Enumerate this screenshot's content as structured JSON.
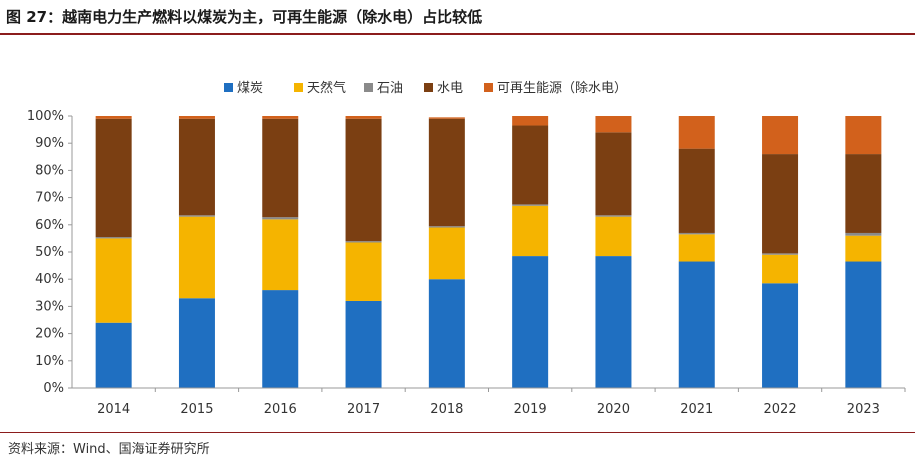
{
  "header": {
    "title": "图 27：越南电力生产燃料以煤炭为主，可再生能源（除水电）占比较低"
  },
  "footer": {
    "source": "资料来源：Wind、国海证券研究所"
  },
  "chart_data": {
    "type": "bar",
    "stacked": true,
    "title": "",
    "xlabel": "",
    "ylabel": "",
    "ylim": [
      0,
      100
    ],
    "y_tick_format": "percent",
    "y_ticks": [
      "0%",
      "10%",
      "20%",
      "30%",
      "40%",
      "50%",
      "60%",
      "70%",
      "80%",
      "90%",
      "100%"
    ],
    "legend_position": "top-center",
    "categories": [
      "2014",
      "2015",
      "2016",
      "2017",
      "2018",
      "2019",
      "2020",
      "2021",
      "2022",
      "2023"
    ],
    "series": [
      {
        "name": "煤炭",
        "color": "#1f6fc1",
        "values": [
          24,
          33,
          36,
          32,
          40,
          48.5,
          48.5,
          46.5,
          38.5,
          46.5
        ]
      },
      {
        "name": "天然气",
        "color": "#f5b400",
        "values": [
          31,
          30,
          26,
          21.5,
          19,
          18.5,
          14.5,
          10,
          10.5,
          9.5
        ]
      },
      {
        "name": "石油",
        "color": "#8a8a8a",
        "values": [
          0.5,
          0.5,
          0.8,
          0.5,
          0.5,
          0.5,
          0.5,
          0.5,
          0.5,
          1
        ]
      },
      {
        "name": "水电",
        "color": "#7b3f12",
        "values": [
          43.5,
          35.5,
          36.2,
          45,
          39.5,
          29,
          30.5,
          31,
          36.5,
          29
        ]
      },
      {
        "name": "可再生能源（除水电）",
        "color": "#d2611c",
        "values": [
          1,
          1,
          1,
          1,
          0.5,
          3.5,
          6,
          12,
          14,
          14
        ]
      }
    ]
  }
}
